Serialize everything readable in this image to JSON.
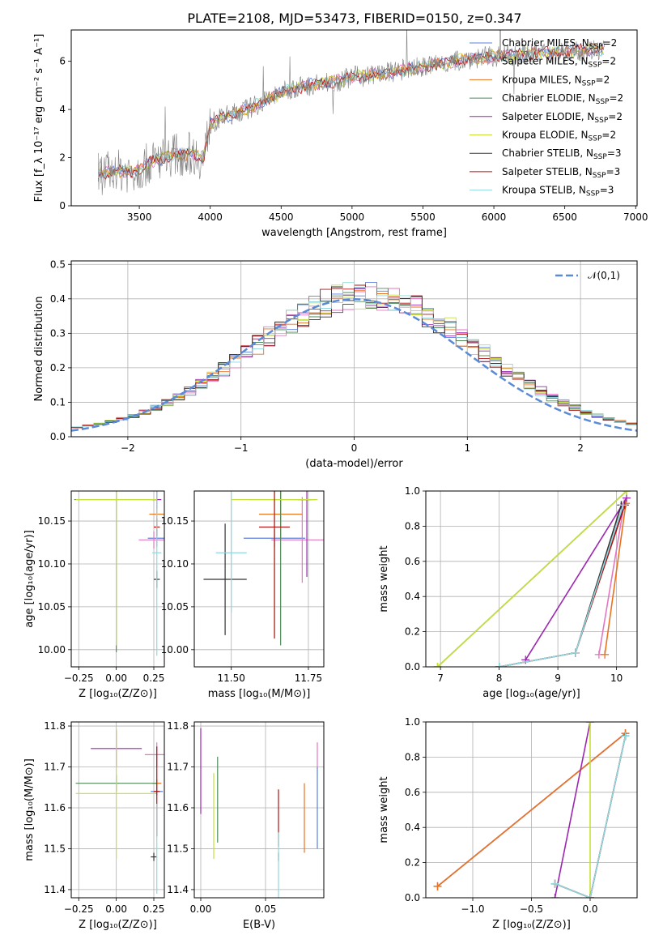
{
  "figure_title": "PLATE=2108, MJD=53473, FIBERID=0150, z=0.347",
  "colors": {
    "Chabrier MILES": "#5b7fdb",
    "Salpeter MILES": "#e377c2",
    "Kroupa MILES": "#e8731f",
    "Chabrier ELODIE": "#4f8a5b",
    "Salpeter ELODIE": "#9c27b0",
    "Kroupa ELODIE": "#c6e03a",
    "Chabrier STELIB": "#333333",
    "Salpeter STELIB": "#b01010",
    "Kroupa STELIB": "#8fd8df",
    "normal": "#5b8ad6",
    "data": "#7f7f7f"
  },
  "chart_data": [
    {
      "type": "line",
      "id": "spectrum",
      "title": "PLATE=2108, MJD=53473, FIBERID=0150, z=0.347",
      "xlabel": "wavelength [Angstrom, rest frame]",
      "ylabel": "Flux [f_λ 10⁻¹⁷ erg cm⁻² s⁻¹ A⁻¹]",
      "xlim": [
        3020,
        7010
      ],
      "ylim": [
        0,
        7.3
      ],
      "xticks": [
        "3500",
        "4000",
        "4500",
        "5000",
        "5500",
        "6000",
        "6500",
        "7000"
      ],
      "yticks": [
        "0",
        "2",
        "4",
        "6"
      ],
      "grid": false,
      "legend_position": "top-right",
      "continuum_x": [
        3210,
        3250,
        3300,
        3350,
        3400,
        3450,
        3500,
        3550,
        3600,
        3650,
        3700,
        3750,
        3800,
        3850,
        3900,
        3950,
        4000,
        4100,
        4200,
        4300,
        4400,
        4500,
        4600,
        4700,
        4800,
        4900,
        5000,
        5100,
        5200,
        5300,
        5400,
        5500,
        5600,
        5700,
        5800,
        5900,
        6000,
        6100,
        6200,
        6300,
        6400,
        6500,
        6600,
        6700,
        6780
      ],
      "continuum_y": [
        1.3,
        1.35,
        1.4,
        1.45,
        1.45,
        1.4,
        1.5,
        1.7,
        1.85,
        1.95,
        2.05,
        2.15,
        2.1,
        2.2,
        2.1,
        1.9,
        3.4,
        3.7,
        3.9,
        4.1,
        4.4,
        4.7,
        4.9,
        5.0,
        5.1,
        5.2,
        5.35,
        5.4,
        5.5,
        5.55,
        5.7,
        5.75,
        5.9,
        5.95,
        6.1,
        6.15,
        6.2,
        6.25,
        6.3,
        6.35,
        6.35,
        6.4,
        6.45,
        6.5,
        6.5
      ],
      "series": [
        {
          "name": "Chabrier MILES, N_SSP=2"
        },
        {
          "name": "Salpeter MILES, N_SSP=2"
        },
        {
          "name": "Kroupa MILES, N_SSP=2"
        },
        {
          "name": "Chabrier ELODIE, N_SSP=2"
        },
        {
          "name": "Salpeter ELODIE, N_SSP=2"
        },
        {
          "name": "Kroupa ELODIE, N_SSP=2"
        },
        {
          "name": "Chabrier STELIB, N_SSP=3"
        },
        {
          "name": "Salpeter STELIB, N_SSP=3"
        },
        {
          "name": "Kroupa STELIB, N_SSP=3"
        }
      ]
    },
    {
      "type": "histogram",
      "id": "residuals",
      "xlabel": "(data-model)/error",
      "ylabel": "Normed distribution",
      "xlim": [
        -2.5,
        2.5
      ],
      "ylim": [
        0,
        0.51
      ],
      "xticks": [
        "−2",
        "−1",
        "0",
        "1",
        "2"
      ],
      "yticks": [
        "0.0",
        "0.1",
        "0.2",
        "0.3",
        "0.4",
        "0.5"
      ],
      "grid": true,
      "legend_position": "top-right",
      "legend_label": "𝒩(0,1)",
      "bin_width": 0.1,
      "normal_curve": {
        "mean": 0,
        "sigma": 1
      }
    },
    {
      "type": "scatter",
      "id": "age-vs-Z",
      "xlabel": "Z [log₁₀(Z/Z⊙)]",
      "ylabel": "age  [log₁₀(age/yr)]",
      "xlim": [
        -0.3,
        0.32
      ],
      "ylim": [
        9.98,
        10.185
      ],
      "xticks": [
        "−0.25",
        "0.00",
        "0.25"
      ],
      "yticks": [
        "10.00",
        "10.05",
        "10.10",
        "10.15"
      ],
      "grid": true,
      "points": [
        {
          "model": "Chabrier MILES",
          "x": 0.27,
          "y": 10.13,
          "xerr": 0.06,
          "yerr": 0.01
        },
        {
          "model": "Salpeter MILES",
          "x": 0.25,
          "y": 10.128,
          "xerr": 0.1,
          "yerr": 0.01
        },
        {
          "model": "Kroupa MILES",
          "x": 0.27,
          "y": 10.158,
          "xerr": 0.05,
          "yerr": 0.008
        },
        {
          "model": "Chabrier ELODIE",
          "x": 0.0,
          "y": 10.175,
          "xerr": 0.28,
          "yerr": 0.178
        },
        {
          "model": "Salpeter ELODIE",
          "x": 0.27,
          "y": 10.175,
          "xerr": 0.03,
          "yerr": 0.01
        },
        {
          "model": "Kroupa ELODIE",
          "x": 0.0,
          "y": 10.175,
          "xerr": 0.27,
          "yerr": 0.17
        },
        {
          "model": "Chabrier STELIB",
          "x": 0.27,
          "y": 10.082,
          "xerr": 0.02,
          "yerr": 0.01
        },
        {
          "model": "Salpeter STELIB",
          "x": 0.27,
          "y": 10.143,
          "xerr": 0.02,
          "yerr": 0.01
        },
        {
          "model": "Kroupa STELIB",
          "x": 0.27,
          "y": 10.113,
          "xerr": 0.03,
          "yerr": 0.12
        }
      ]
    },
    {
      "type": "scatter",
      "id": "age-vs-mass",
      "xlabel": "mass [log₁₀(M/M⊙)]",
      "ylabel": "",
      "xlim": [
        11.38,
        11.8
      ],
      "ylim": [
        9.98,
        10.185
      ],
      "xticks": [
        "11.50",
        "11.75"
      ],
      "yticks": [
        "10.00",
        "10.05",
        "10.10",
        "10.15"
      ],
      "grid": true,
      "points": [
        {
          "model": "Chabrier MILES",
          "x": 11.64,
          "y": 10.13,
          "xerr": 0.1,
          "yerr": 0.01
        },
        {
          "model": "Salpeter MILES",
          "x": 11.73,
          "y": 10.128,
          "xerr": 0.1,
          "yerr": 0.05
        },
        {
          "model": "Kroupa MILES",
          "x": 11.66,
          "y": 10.158,
          "xerr": 0.07,
          "yerr": 0.03
        },
        {
          "model": "Chabrier ELODIE",
          "x": 11.66,
          "y": 10.175,
          "xerr": 0.1,
          "yerr": 0.17
        },
        {
          "model": "Salpeter ELODIE",
          "x": 11.745,
          "y": 10.175,
          "xerr": 0.03,
          "yerr": 0.09
        },
        {
          "model": "Kroupa ELODIE",
          "x": 11.64,
          "y": 10.175,
          "xerr": 0.14,
          "yerr": 0.16
        },
        {
          "model": "Chabrier STELIB",
          "x": 11.48,
          "y": 10.082,
          "xerr": 0.07,
          "yerr": 0.065
        },
        {
          "model": "Salpeter STELIB",
          "x": 11.64,
          "y": 10.143,
          "xerr": 0.05,
          "yerr": 0.13
        },
        {
          "model": "Kroupa STELIB",
          "x": 11.5,
          "y": 10.113,
          "xerr": 0.05,
          "yerr": 0.07
        }
      ]
    },
    {
      "type": "line",
      "id": "weight-vs-age",
      "xlabel": "age  [log₁₀(age/yr)]",
      "ylabel": "mass weight",
      "xlim": [
        6.75,
        10.35
      ],
      "ylim": [
        0,
        1.0
      ],
      "xticks": [
        "7",
        "8",
        "9",
        "10"
      ],
      "yticks": [
        "0.0",
        "0.2",
        "0.4",
        "0.6",
        "0.8",
        "1.0"
      ],
      "grid": true,
      "series": [
        {
          "model": "Chabrier MILES",
          "x": [
            9.3,
            10.13
          ],
          "y": [
            0.08,
            0.92
          ]
        },
        {
          "model": "Salpeter MILES",
          "x": [
            9.7,
            10.13
          ],
          "y": [
            0.07,
            0.93
          ]
        },
        {
          "model": "Kroupa MILES",
          "x": [
            9.8,
            10.16
          ],
          "y": [
            0.07,
            0.93
          ]
        },
        {
          "model": "Chabrier ELODIE",
          "x": [
            6.95,
            10.17
          ],
          "y": [
            0.0,
            1.0
          ]
        },
        {
          "model": "Salpeter ELODIE",
          "x": [
            8.45,
            10.17
          ],
          "y": [
            0.04,
            0.96
          ]
        },
        {
          "model": "Kroupa ELODIE",
          "x": [
            6.95,
            10.17
          ],
          "y": [
            0.0,
            1.0
          ]
        },
        {
          "model": "Chabrier STELIB",
          "x": [
            8.0,
            9.3,
            10.08
          ],
          "y": [
            0.0,
            0.08,
            0.92
          ]
        },
        {
          "model": "Salpeter STELIB",
          "x": [
            8.0,
            9.3,
            10.14
          ],
          "y": [
            0.0,
            0.08,
            0.92
          ]
        },
        {
          "model": "Kroupa STELIB",
          "x": [
            8.0,
            9.3,
            10.11
          ],
          "y": [
            0.0,
            0.08,
            0.92
          ]
        }
      ]
    },
    {
      "type": "scatter",
      "id": "mass-vs-Z",
      "xlabel": "Z [log₁₀(Z/Z⊙)]",
      "ylabel": "mass [log₁₀(M/M⊙)]",
      "xlim": [
        -0.3,
        0.32
      ],
      "ylim": [
        11.38,
        11.81
      ],
      "xticks": [
        "−0.25",
        "0.00",
        "0.25"
      ],
      "yticks": [
        "11.4",
        "11.5",
        "11.6",
        "11.7",
        "11.8"
      ],
      "grid": true,
      "points": [
        {
          "model": "Chabrier MILES",
          "x": 0.27,
          "y": 11.64,
          "xerr": 0.04,
          "yerr": 0.01
        },
        {
          "model": "Salpeter MILES",
          "x": 0.27,
          "y": 11.73,
          "xerr": 0.08,
          "yerr": 0.03
        },
        {
          "model": "Kroupa MILES",
          "x": 0.27,
          "y": 11.66,
          "xerr": 0.03,
          "yerr": 0.01
        },
        {
          "model": "Chabrier ELODIE",
          "x": 0.0,
          "y": 11.66,
          "xerr": 0.27,
          "yerr": 0.02
        },
        {
          "model": "Salpeter ELODIE",
          "x": 0.0,
          "y": 11.745,
          "xerr": 0.17,
          "yerr": 0.045
        },
        {
          "model": "Kroupa ELODIE",
          "x": 0.0,
          "y": 11.635,
          "xerr": 0.27,
          "yerr": 0.16
        },
        {
          "model": "Chabrier STELIB",
          "x": 0.25,
          "y": 11.48,
          "xerr": 0.02,
          "yerr": 0.01
        },
        {
          "model": "Salpeter STELIB",
          "x": 0.27,
          "y": 11.64,
          "xerr": 0.02,
          "yerr": 0.11
        },
        {
          "model": "Kroupa STELIB",
          "x": 0.27,
          "y": 11.5,
          "xerr": 0.02,
          "yerr": 0.11
        }
      ]
    },
    {
      "type": "scatter",
      "id": "mass-vs-ebv",
      "xlabel": "E(B-V)",
      "ylabel": "",
      "xlim": [
        -0.005,
        0.095
      ],
      "ylim": [
        11.38,
        11.81
      ],
      "xticks": [
        "0.00",
        "0.05"
      ],
      "yticks": [
        "11.4",
        "11.5",
        "11.6",
        "11.7",
        "11.8"
      ],
      "grid": true,
      "points": [
        {
          "model": "Chabrier MILES",
          "x": 0.09,
          "y": 11.6,
          "xerr": 0,
          "yerr": 0.1
        },
        {
          "model": "Salpeter MILES",
          "x": 0.09,
          "y": 11.73,
          "xerr": 0,
          "yerr": 0.03
        },
        {
          "model": "Kroupa MILES",
          "x": 0.08,
          "y": 11.575,
          "xerr": 0,
          "yerr": 0.085
        },
        {
          "model": "Chabrier ELODIE",
          "x": 0.013,
          "y": 11.62,
          "xerr": 0,
          "yerr": 0.105
        },
        {
          "model": "Salpeter ELODIE",
          "x": 0.0,
          "y": 11.69,
          "xerr": 0,
          "yerr": 0.105
        },
        {
          "model": "Kroupa ELODIE",
          "x": 0.01,
          "y": 11.58,
          "xerr": 0,
          "yerr": 0.105
        },
        {
          "model": "Chabrier STELIB",
          "x": 0.06,
          "y": 11.48,
          "xerr": 0,
          "yerr": 0.01
        },
        {
          "model": "Salpeter STELIB",
          "x": 0.06,
          "y": 11.575,
          "xerr": 0,
          "yerr": 0.07
        },
        {
          "model": "Kroupa STELIB",
          "x": 0.06,
          "y": 11.46,
          "xerr": 0,
          "yerr": 0.08
        }
      ]
    },
    {
      "type": "line",
      "id": "weight-vs-Z",
      "xlabel": "Z [log₁₀(Z/Z⊙)]",
      "ylabel": "mass weight",
      "xlim": [
        -1.4,
        0.4
      ],
      "ylim": [
        0,
        1.0
      ],
      "xticks": [
        "−1.0",
        "−0.5",
        "0.0"
      ],
      "yticks": [
        "0.0",
        "0.2",
        "0.4",
        "0.6",
        "0.8",
        "1.0"
      ],
      "grid": true,
      "series": [
        {
          "model": "Chabrier MILES",
          "x": [
            -1.3,
            0.3
          ],
          "y": [
            0.065,
            0.935
          ]
        },
        {
          "model": "Salpeter MILES",
          "x": [
            -1.3,
            0.3
          ],
          "y": [
            0.065,
            0.935
          ]
        },
        {
          "model": "Kroupa MILES",
          "x": [
            -1.3,
            0.3
          ],
          "y": [
            0.065,
            0.935
          ]
        },
        {
          "model": "Chabrier ELODIE",
          "x": [
            0.0
          ],
          "y": [
            1.0
          ]
        },
        {
          "model": "Salpeter ELODIE",
          "x": [
            -0.3,
            0.0
          ],
          "y": [
            0.0,
            1.0
          ]
        },
        {
          "model": "Kroupa ELODIE",
          "x": [
            0.0,
            0.0
          ],
          "y": [
            0.0,
            1.0
          ]
        },
        {
          "model": "Chabrier STELIB",
          "x": [
            -0.3,
            0.0,
            0.3
          ],
          "y": [
            0.08,
            0.0,
            0.92
          ]
        },
        {
          "model": "Salpeter STELIB",
          "x": [
            -0.3,
            0.0,
            0.3
          ],
          "y": [
            0.08,
            0.0,
            0.92
          ]
        },
        {
          "model": "Kroupa STELIB",
          "x": [
            -0.3,
            0.0,
            0.3
          ],
          "y": [
            0.08,
            0.0,
            0.92
          ]
        }
      ]
    }
  ]
}
